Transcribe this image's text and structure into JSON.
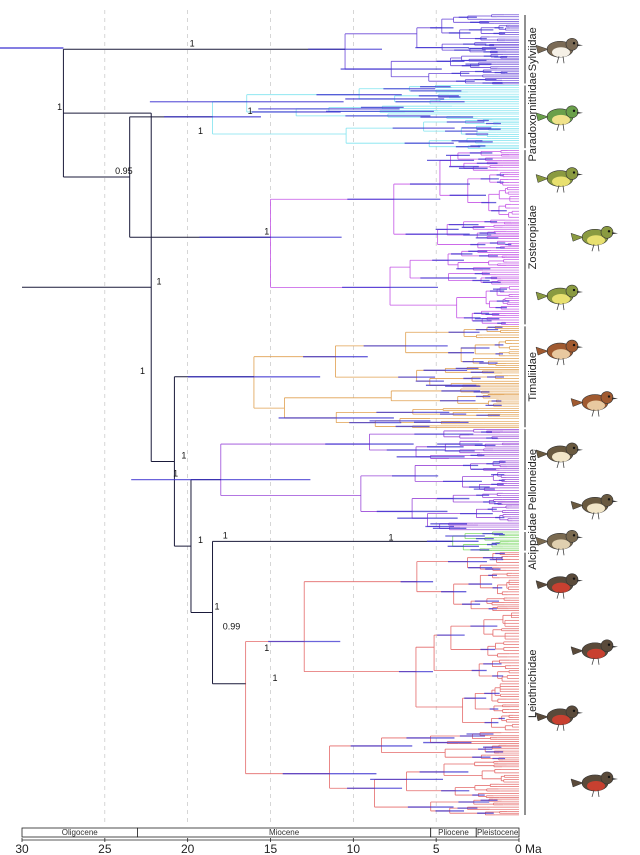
{
  "axis": {
    "ticks": [
      30,
      25,
      20,
      15,
      10,
      5,
      0
    ],
    "tick_labels": [
      "30",
      "25",
      "20",
      "15",
      "10",
      "5",
      "0 Ma"
    ],
    "epochs": [
      {
        "name": "Oligocene",
        "start": 30,
        "end": 23.03
      },
      {
        "name": "Miocene",
        "start": 23.03,
        "end": 5.33
      },
      {
        "name": "Pliocene",
        "start": 5.33,
        "end": 2.58
      },
      {
        "name": "Pleistocene",
        "start": 2.58,
        "end": 0
      }
    ]
  },
  "families": [
    {
      "name": "Sylviidae",
      "color": "#6a48d8",
      "tips": 24,
      "crown_age": 10.5
    },
    {
      "name": "Paradoxornithidae",
      "color": "#7fe3ef",
      "tips": 22,
      "crown_age": 18.5
    },
    {
      "name": "Zosteropidae",
      "color": "#c455e6",
      "tips": 60,
      "crown_age": 15
    },
    {
      "name": "Timaliidae",
      "color": "#e0a050",
      "tips": 35,
      "crown_age": 16
    },
    {
      "name": "Pellorneidae",
      "color": "#9a48d8",
      "tips": 35,
      "crown_age": 18
    },
    {
      "name": "Alcippeidae",
      "color": "#7fd86a",
      "tips": 7,
      "crown_age": 4
    },
    {
      "name": "Leiothrichidae",
      "color": "#e46a6a",
      "tips": 90,
      "crown_age": 16.5
    }
  ],
  "node_support": [
    {
      "label": "1",
      "age": 22
    },
    {
      "label": "1",
      "age": 20.5
    },
    {
      "label": "1",
      "age": 15.5
    },
    {
      "label": "1",
      "age": 19.5
    },
    {
      "label": "1",
      "age": 28
    },
    {
      "label": "0.95",
      "age": 24.5
    },
    {
      "label": "1",
      "age": 18.5
    },
    {
      "label": "1",
      "age": 15
    },
    {
      "label": "1",
      "age": 23
    },
    {
      "label": "1",
      "age": 21
    },
    {
      "label": "1",
      "age": 16.5
    },
    {
      "label": "1",
      "age": 20
    },
    {
      "label": "1",
      "age": 18
    },
    {
      "label": "1",
      "age": 19.5
    },
    {
      "label": "1",
      "age": 8
    },
    {
      "label": "0.99",
      "age": 18
    },
    {
      "label": "1",
      "age": 15.5
    }
  ],
  "bird_icons": [
    "sylviid-bird-icon",
    "paradoxornithid-bird-icon",
    "zosteropid-bird-icon",
    "timaliid-bird-icon",
    "pellorneid-bird-icon",
    "alcippeid-bird-icon",
    "leiothrichid-bird-icon"
  ],
  "colors": {
    "backbone": "#1a1a3a",
    "hpd_bar": "#3a30d0",
    "grid": "#bbbbbb"
  }
}
